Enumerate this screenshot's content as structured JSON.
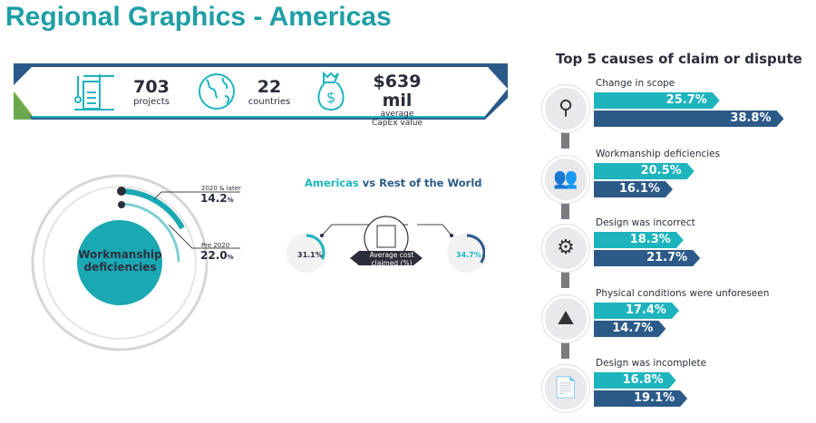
{
  "title": "Regional Graphics - Americas",
  "banner": {
    "stats": [
      {
        "icon": "construction-crane-icon",
        "value": "703",
        "label": "projects"
      },
      {
        "icon": "globe-icon",
        "value": "22",
        "label": "countries"
      },
      {
        "icon": "money-bag-icon",
        "value": "$639 mil",
        "label1": "average",
        "label2": "CapEx value"
      }
    ]
  },
  "cause_ring": {
    "center_label1": "Workmanship",
    "center_label2": "deficiencies",
    "outer": {
      "label": "2020 & later",
      "value": "14.2",
      "unit": "%"
    },
    "inner": {
      "label": "Pre 2020",
      "value": "22.0",
      "unit": "%"
    }
  },
  "comparison": {
    "title_a": "Americas",
    "title_vs": "vs",
    "title_b": "Rest of the World",
    "center_label1": "Average cost",
    "center_label2": "claimed (%)",
    "americas": {
      "value": 31.1,
      "text": "31.1%"
    },
    "rest": {
      "value": 34.7,
      "text": "34.7%"
    }
  },
  "top_causes": {
    "title": "Top 5 causes of claim or dispute",
    "colors": {
      "americas": "#1db4be",
      "rest": "#2c5a88"
    },
    "items": [
      {
        "label": "Change in scope",
        "icon": "magnifier-refresh-icon",
        "americas": 25.7,
        "rest": 38.8,
        "americas_text": "25.7%",
        "rest_text": "38.8%"
      },
      {
        "label": "Workmanship deficiencies",
        "icon": "workers-icon",
        "americas": 20.5,
        "rest": 16.1,
        "americas_text": "20.5%",
        "rest_text": "16.1%"
      },
      {
        "label": "Design was incorrect",
        "icon": "gear-pencil-icon",
        "americas": 18.3,
        "rest": 21.7,
        "americas_text": "18.3%",
        "rest_text": "21.7%"
      },
      {
        "label": "Physical conditions were unforeseen",
        "icon": "landslide-icon",
        "americas": 17.4,
        "rest": 14.7,
        "americas_text": "17.4%",
        "rest_text": "14.7%"
      },
      {
        "label": "Design was incomplete",
        "icon": "blueprint-icon",
        "americas": 16.8,
        "rest": 19.1,
        "americas_text": "16.8%",
        "rest_text": "19.1%"
      }
    ]
  }
}
